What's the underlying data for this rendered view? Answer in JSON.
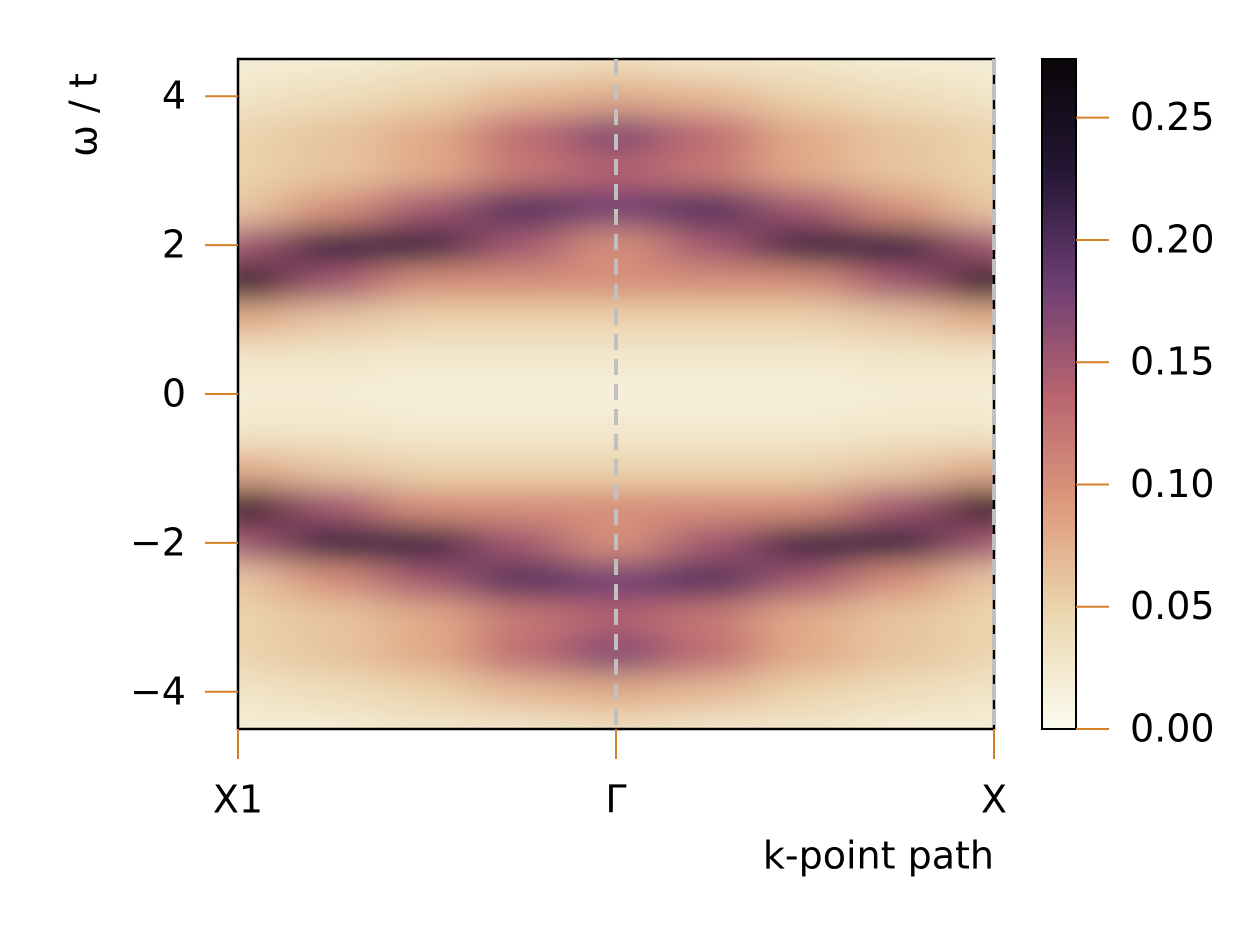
{
  "chart_data": {
    "type": "heatmap",
    "xlabel": "k-point path",
    "ylabel": "ω / t",
    "x": [
      0,
      0.125,
      0.25,
      0.375,
      0.5,
      0.625,
      0.75,
      0.875,
      1
    ],
    "y": [
      -4.5,
      -4,
      -3.5,
      -3,
      -2.5,
      -2,
      -1.5,
      -1,
      -0.5,
      0,
      0.5,
      1,
      1.5,
      2,
      2.5,
      3,
      3.5,
      4,
      4.5
    ],
    "z": [
      [
        0.02,
        0.02,
        0.03,
        0.03,
        0.04,
        0.03,
        0.03,
        0.02,
        0.02
      ],
      [
        0.03,
        0.04,
        0.05,
        0.07,
        0.08,
        0.07,
        0.05,
        0.04,
        0.03
      ],
      [
        0.05,
        0.06,
        0.08,
        0.13,
        0.17,
        0.13,
        0.08,
        0.06,
        0.05
      ],
      [
        0.05,
        0.06,
        0.08,
        0.12,
        0.14,
        0.12,
        0.08,
        0.06,
        0.05
      ],
      [
        0.06,
        0.1,
        0.15,
        0.2,
        0.18,
        0.2,
        0.15,
        0.1,
        0.06
      ],
      [
        0.15,
        0.22,
        0.22,
        0.15,
        0.1,
        0.15,
        0.22,
        0.22,
        0.15
      ],
      [
        0.25,
        0.15,
        0.1,
        0.1,
        0.1,
        0.1,
        0.1,
        0.15,
        0.25
      ],
      [
        0.08,
        0.06,
        0.05,
        0.05,
        0.05,
        0.05,
        0.05,
        0.06,
        0.08
      ],
      [
        0.03,
        0.03,
        0.025,
        0.025,
        0.025,
        0.025,
        0.025,
        0.03,
        0.03
      ],
      [
        0.02,
        0.02,
        0.015,
        0.015,
        0.015,
        0.015,
        0.015,
        0.02,
        0.02
      ],
      [
        0.03,
        0.03,
        0.025,
        0.025,
        0.025,
        0.025,
        0.025,
        0.03,
        0.03
      ],
      [
        0.08,
        0.06,
        0.05,
        0.05,
        0.05,
        0.05,
        0.05,
        0.06,
        0.08
      ],
      [
        0.25,
        0.15,
        0.1,
        0.1,
        0.1,
        0.1,
        0.1,
        0.15,
        0.25
      ],
      [
        0.15,
        0.22,
        0.22,
        0.15,
        0.1,
        0.15,
        0.22,
        0.22,
        0.15
      ],
      [
        0.06,
        0.1,
        0.15,
        0.2,
        0.18,
        0.2,
        0.15,
        0.1,
        0.06
      ],
      [
        0.05,
        0.06,
        0.08,
        0.12,
        0.14,
        0.12,
        0.08,
        0.06,
        0.05
      ],
      [
        0.05,
        0.06,
        0.08,
        0.13,
        0.17,
        0.13,
        0.08,
        0.06,
        0.05
      ],
      [
        0.03,
        0.04,
        0.05,
        0.07,
        0.08,
        0.07,
        0.05,
        0.04,
        0.03
      ],
      [
        0.02,
        0.02,
        0.03,
        0.03,
        0.04,
        0.03,
        0.03,
        0.02,
        0.02
      ]
    ],
    "xlim": [
      0,
      1
    ],
    "xticks": [
      {
        "value": 0,
        "label": "X1"
      },
      {
        "value": 0.5,
        "label": "Γ"
      },
      {
        "value": 1,
        "label": "X"
      }
    ],
    "ylim": [
      -4.5,
      4.5
    ],
    "yticks": [
      {
        "value": -4,
        "label": "−4"
      },
      {
        "value": -2,
        "label": "−2"
      },
      0,
      2,
      4
    ],
    "clim": [
      0,
      0.274
    ],
    "cticks": [
      {
        "value": 0,
        "label": "0.00"
      },
      0.05,
      {
        "value": 0.1,
        "label": "0.10"
      },
      0.15,
      {
        "value": 0.2,
        "label": "0.20"
      },
      0.25
    ],
    "colormap": [
      "#fbfbef",
      "#ecd9b2",
      "#dd9a7c",
      "#b86470",
      "#6b3d73",
      "#241634",
      "#0a0508"
    ],
    "tick_color": "#d4822a",
    "divider_color": "#c0c0c0"
  }
}
